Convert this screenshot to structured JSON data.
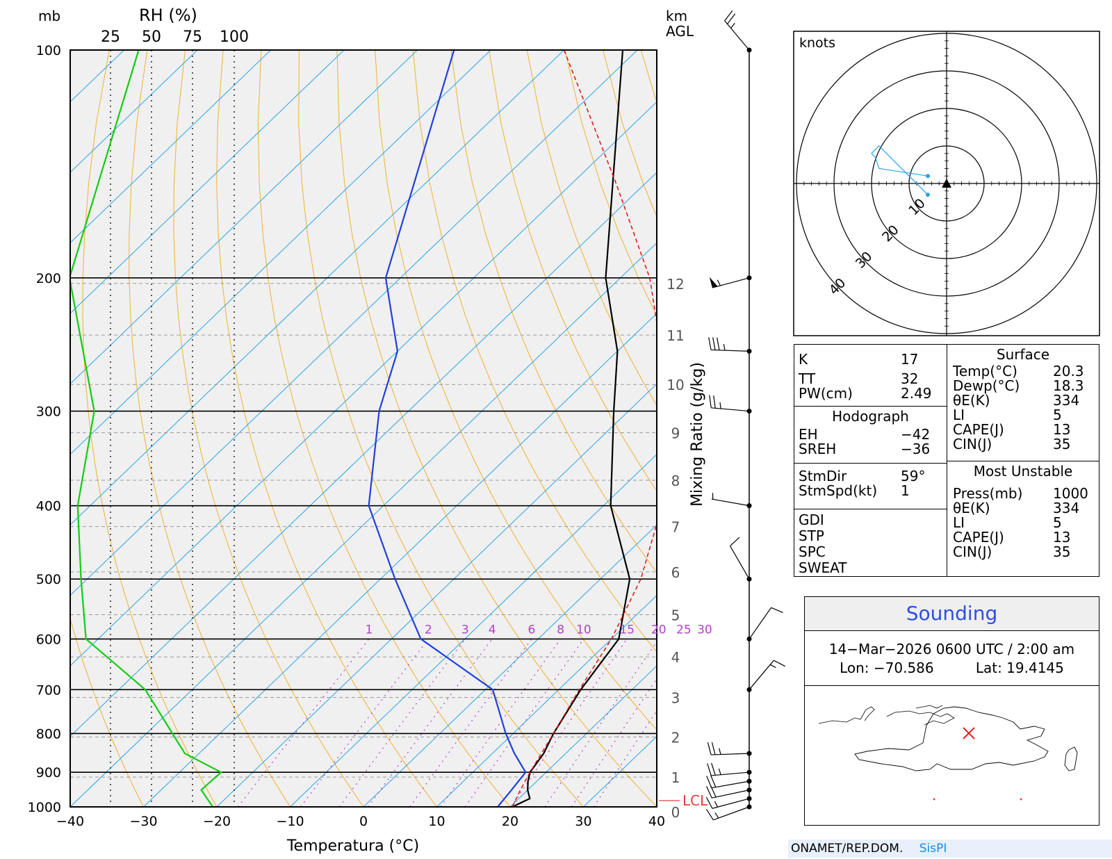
{
  "chart_data": {
    "type": "line",
    "title": "",
    "xlabel": "Temperatura (°C)",
    "ylabel": "mb",
    "xlim": [
      -40,
      40
    ],
    "pressure_ticks": [
      100,
      200,
      300,
      400,
      500,
      600,
      700,
      800,
      900,
      1000
    ],
    "temperature_ticks": [
      -40,
      -30,
      -20,
      -10,
      0,
      10,
      20,
      30,
      40
    ],
    "rh_label": "RH (%)",
    "rh_ticks": [
      "25",
      "50",
      "75",
      "100"
    ],
    "height_label_top": "km",
    "height_label_bottom": "AGL",
    "height_ticks": [
      "0",
      "1",
      "2",
      "3",
      "4",
      "5",
      "6",
      "7",
      "8",
      "9",
      "10",
      "11",
      "12"
    ],
    "mixing_ratio_label": "Mixing Ratio (g/kg)",
    "mixing_ratio_ticks": [
      "1",
      "2",
      "3",
      "4",
      "6",
      "8",
      "10",
      "15",
      "20",
      "25",
      "30"
    ],
    "lcl_label": "LCL",
    "series": [
      {
        "name": "Temperature",
        "color": "#000000",
        "points": [
          [
            1000,
            20.3
          ],
          [
            975,
            21.5
          ],
          [
            950,
            20
          ],
          [
            925,
            18.8
          ],
          [
            900,
            17.8
          ],
          [
            850,
            17
          ],
          [
            800,
            15.5
          ],
          [
            700,
            13
          ],
          [
            600,
            11
          ],
          [
            500,
            4
          ],
          [
            400,
            -9
          ],
          [
            300,
            -22
          ],
          [
            250,
            -30
          ],
          [
            200,
            -42
          ],
          [
            100,
            -72
          ]
        ]
      },
      {
        "name": "Dewpoint",
        "color": "#1f3fe0",
        "points": [
          [
            1000,
            18.3
          ],
          [
            950,
            17.8
          ],
          [
            925,
            17.5
          ],
          [
            900,
            17.2
          ],
          [
            850,
            13
          ],
          [
            800,
            9
          ],
          [
            700,
            1
          ],
          [
            600,
            -16
          ],
          [
            500,
            -28
          ],
          [
            400,
            -42
          ],
          [
            300,
            -54
          ],
          [
            250,
            -60
          ],
          [
            200,
            -72
          ],
          [
            100,
            -95
          ]
        ]
      },
      {
        "name": "Parcel",
        "color": "#e01010",
        "points": [
          [
            1000,
            20.3
          ],
          [
            950,
            19
          ],
          [
            900,
            17.8
          ],
          [
            800,
            15.5
          ],
          [
            700,
            12.8
          ],
          [
            600,
            10
          ],
          [
            500,
            5.5
          ],
          [
            400,
            -2
          ],
          [
            300,
            -15
          ],
          [
            250,
            -24
          ],
          [
            200,
            -36
          ],
          [
            150,
            -54
          ],
          [
            100,
            -80
          ]
        ]
      },
      {
        "name": "RH",
        "color": "#12cc12",
        "points": [
          [
            1000,
            87
          ],
          [
            950,
            80
          ],
          [
            900,
            92
          ],
          [
            850,
            70
          ],
          [
            700,
            46
          ],
          [
            600,
            10
          ],
          [
            500,
            7
          ],
          [
            400,
            5
          ],
          [
            300,
            15
          ],
          [
            200,
            0
          ],
          [
            100,
            42
          ]
        ]
      }
    ],
    "wind_barbs": [
      {
        "p": 1000,
        "dir": 250,
        "spd": 15
      },
      {
        "p": 975,
        "dir": 255,
        "spd": 15
      },
      {
        "p": 950,
        "dir": 258,
        "spd": 20
      },
      {
        "p": 925,
        "dir": 260,
        "spd": 20
      },
      {
        "p": 900,
        "dir": 265,
        "spd": 25
      },
      {
        "p": 850,
        "dir": 268,
        "spd": 25
      },
      {
        "p": 700,
        "dir": 40,
        "spd": 15
      },
      {
        "p": 600,
        "dir": 35,
        "spd": 10
      },
      {
        "p": 500,
        "dir": 330,
        "spd": 10
      },
      {
        "p": 400,
        "dir": 280,
        "spd": 5
      },
      {
        "p": 300,
        "dir": 275,
        "spd": 25
      },
      {
        "p": 250,
        "dir": 272,
        "spd": 35
      },
      {
        "p": 200,
        "dir": 255,
        "spd": 55
      },
      {
        "p": 100,
        "dir": 320,
        "spd": 25
      }
    ]
  },
  "hodograph": {
    "units_label": "knots",
    "ring_labels": [
      "10",
      "20",
      "30",
      "40"
    ],
    "trace": [
      [
        -5,
        2
      ],
      [
        -18,
        4
      ],
      [
        -19,
        7
      ],
      [
        -20,
        8
      ],
      [
        -18,
        10
      ],
      [
        -5,
        -3
      ]
    ]
  },
  "indices": {
    "rows": [
      {
        "label": "K",
        "value": "17"
      },
      {
        "label": "TT",
        "value": "32"
      },
      {
        "label": "PW(cm)",
        "value": "2.49"
      }
    ],
    "hodograph_header": "Hodograph",
    "hodograph_rows": [
      {
        "label": "EH",
        "value": "−42"
      },
      {
        "label": "SREH",
        "value": "−36"
      }
    ],
    "storm_rows": [
      {
        "label": "StmDir",
        "value": "59°"
      },
      {
        "label": "StmSpd(kt)",
        "value": "1"
      }
    ],
    "other_rows": [
      {
        "label": "GDI",
        "value": ""
      },
      {
        "label": "STP",
        "value": ""
      },
      {
        "label": "SPC",
        "value": ""
      },
      {
        "label": "SWEAT",
        "value": ""
      }
    ],
    "surface_header": "Surface",
    "surface_rows": [
      {
        "label": "Temp(°C)",
        "value": "20.3"
      },
      {
        "label": "Dewp(°C)",
        "value": "18.3"
      },
      {
        "label": "θE(K)",
        "value": "334"
      },
      {
        "label": "LI",
        "value": "5"
      },
      {
        "label": "CAPE(J)",
        "value": "13"
      },
      {
        "label": "CIN(J)",
        "value": "35"
      }
    ],
    "mu_header": "Most Unstable",
    "mu_rows": [
      {
        "label": "Press(mb)",
        "value": "1000"
      },
      {
        "label": "θE(K)",
        "value": "334"
      },
      {
        "label": "LI",
        "value": "5"
      },
      {
        "label": "CAPE(J)",
        "value": "13"
      },
      {
        "label": "CIN(J)",
        "value": "35"
      }
    ]
  },
  "sounding": {
    "title": "Sounding",
    "datetime": "14−Mar−2026 0600 UTC / 2:00 am",
    "lon": "Lon: −70.586",
    "lat": "Lat: 19.4145",
    "marker_color": "#e02020"
  },
  "footer": {
    "org": "ONAMET/REP.DOM.",
    "brand": "SisPI",
    "brand_color": "#1a8ae6"
  }
}
